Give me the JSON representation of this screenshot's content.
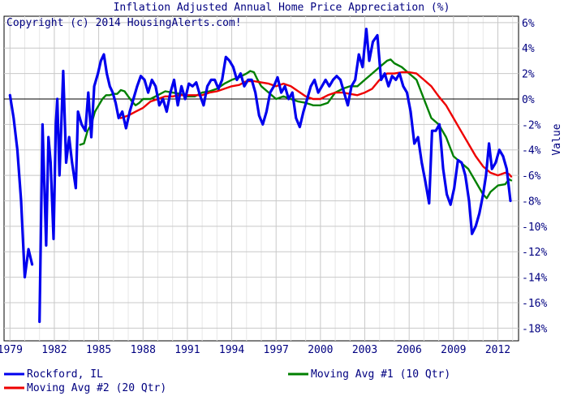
{
  "chart_data": {
    "type": "line",
    "title": "Inflation Adjusted Annual Home Price Appreciation (%)",
    "annotation": "Copyright (c) 2014 HousingAlerts.com!",
    "xlabel": "",
    "ylabel": "Value",
    "xlim": [
      1978.6,
      2013.4
    ],
    "ylim": [
      -19,
      6.5
    ],
    "x_ticks": [
      1979,
      1982,
      1985,
      1988,
      1991,
      1994,
      1997,
      2000,
      2003,
      2006,
      2009,
      2012
    ],
    "x_tick_labels": [
      "1979",
      "1982",
      "1985",
      "1988",
      "1991",
      "1994",
      "1997",
      "2000",
      "2003",
      "2006",
      "2009",
      "2012"
    ],
    "y_ticks": [
      6,
      4,
      2,
      0,
      -2,
      -4,
      -6,
      -8,
      -10,
      -12,
      -14,
      -16,
      -18
    ],
    "y_tick_labels": [
      "6%",
      "4%",
      "2%",
      "0%",
      "-2%",
      "-4%",
      "-6%",
      "-8%",
      "-10%",
      "-12%",
      "-14%",
      "-16%",
      "-18%"
    ],
    "grid": true,
    "legend_position": "bottom",
    "colors": {
      "series_1": "#0000ee",
      "series_2": "#008000",
      "series_3": "#ee0000",
      "zero_line": "#000000",
      "text": "#000080"
    },
    "series": [
      {
        "name": "Rockford, IL",
        "color": "#0000ee",
        "points": [
          [
            1979.0,
            0.3
          ],
          [
            1979.25,
            -1.5
          ],
          [
            1979.5,
            -4.0
          ],
          [
            1979.75,
            -8.0
          ],
          [
            1980.0,
            -14.0
          ],
          [
            1980.25,
            -11.8
          ],
          [
            1980.5,
            -13.0
          ],
          [
            1980.75,
            null
          ],
          [
            1981.0,
            -17.5
          ],
          [
            1981.2,
            -2.0
          ],
          [
            1981.45,
            -11.5
          ],
          [
            1981.6,
            -3.0
          ],
          [
            1981.75,
            -5.0
          ],
          [
            1981.95,
            -11.0
          ],
          [
            1982.1,
            -2.0
          ],
          [
            1982.2,
            0.0
          ],
          [
            1982.35,
            -6.0
          ],
          [
            1982.6,
            2.2
          ],
          [
            1982.8,
            -5.0
          ],
          [
            1983.0,
            -3.0
          ],
          [
            1983.2,
            -5.0
          ],
          [
            1983.45,
            -7.0
          ],
          [
            1983.6,
            -1.0
          ],
          [
            1983.85,
            -2.0
          ],
          [
            1984.1,
            -2.5
          ],
          [
            1984.3,
            0.5
          ],
          [
            1984.5,
            -3.0
          ],
          [
            1984.7,
            1.0
          ],
          [
            1984.95,
            2.0
          ],
          [
            1985.15,
            3.0
          ],
          [
            1985.35,
            3.5
          ],
          [
            1985.55,
            2.0
          ],
          [
            1985.75,
            1.0
          ],
          [
            1985.95,
            0.5
          ],
          [
            1986.15,
            -0.3
          ],
          [
            1986.35,
            -1.5
          ],
          [
            1986.6,
            -1.0
          ],
          [
            1986.85,
            -2.3
          ],
          [
            1987.1,
            -1.0
          ],
          [
            1987.35,
            0.0
          ],
          [
            1987.6,
            1.0
          ],
          [
            1987.85,
            1.8
          ],
          [
            1988.1,
            1.5
          ],
          [
            1988.35,
            0.5
          ],
          [
            1988.6,
            1.5
          ],
          [
            1988.85,
            1.0
          ],
          [
            1989.1,
            -0.5
          ],
          [
            1989.35,
            0.0
          ],
          [
            1989.6,
            -1.0
          ],
          [
            1989.85,
            0.5
          ],
          [
            1990.1,
            1.5
          ],
          [
            1990.35,
            -0.5
          ],
          [
            1990.6,
            1.0
          ],
          [
            1990.85,
            0.0
          ],
          [
            1991.1,
            1.2
          ],
          [
            1991.35,
            1.0
          ],
          [
            1991.6,
            1.3
          ],
          [
            1991.85,
            0.3
          ],
          [
            1992.1,
            -0.5
          ],
          [
            1992.35,
            1.0
          ],
          [
            1992.6,
            1.5
          ],
          [
            1992.85,
            1.5
          ],
          [
            1993.1,
            0.8
          ],
          [
            1993.35,
            1.5
          ],
          [
            1993.6,
            3.3
          ],
          [
            1993.85,
            3.0
          ],
          [
            1994.1,
            2.5
          ],
          [
            1994.35,
            1.5
          ],
          [
            1994.6,
            2.0
          ],
          [
            1994.85,
            1.0
          ],
          [
            1995.1,
            1.5
          ],
          [
            1995.35,
            1.5
          ],
          [
            1995.6,
            0.5
          ],
          [
            1995.85,
            -1.3
          ],
          [
            1996.1,
            -2.0
          ],
          [
            1996.35,
            -1.0
          ],
          [
            1996.6,
            0.5
          ],
          [
            1996.85,
            1.0
          ],
          [
            1997.1,
            1.7
          ],
          [
            1997.35,
            0.5
          ],
          [
            1997.6,
            1.0
          ],
          [
            1997.85,
            0.0
          ],
          [
            1998.1,
            0.5
          ],
          [
            1998.35,
            -1.5
          ],
          [
            1998.6,
            -2.2
          ],
          [
            1998.85,
            -1.0
          ],
          [
            1999.1,
            0.0
          ],
          [
            1999.35,
            1.0
          ],
          [
            1999.6,
            1.5
          ],
          [
            1999.85,
            0.5
          ],
          [
            2000.1,
            1.0
          ],
          [
            2000.35,
            1.5
          ],
          [
            2000.6,
            1.0
          ],
          [
            2000.85,
            1.5
          ],
          [
            2001.1,
            1.8
          ],
          [
            2001.35,
            1.5
          ],
          [
            2001.6,
            0.5
          ],
          [
            2001.85,
            -0.5
          ],
          [
            2002.1,
            1.0
          ],
          [
            2002.35,
            1.5
          ],
          [
            2002.6,
            3.5
          ],
          [
            2002.85,
            2.5
          ],
          [
            2003.1,
            5.5
          ],
          [
            2003.3,
            3.0
          ],
          [
            2003.55,
            4.5
          ],
          [
            2003.85,
            5.0
          ],
          [
            2004.1,
            1.5
          ],
          [
            2004.35,
            2.0
          ],
          [
            2004.6,
            1.0
          ],
          [
            2004.85,
            1.8
          ],
          [
            2005.1,
            1.5
          ],
          [
            2005.35,
            2.0
          ],
          [
            2005.6,
            1.0
          ],
          [
            2005.85,
            0.5
          ],
          [
            2006.1,
            -1.0
          ],
          [
            2006.35,
            -3.5
          ],
          [
            2006.6,
            -3.0
          ],
          [
            2006.85,
            -5.0
          ],
          [
            2007.1,
            -6.5
          ],
          [
            2007.35,
            -8.2
          ],
          [
            2007.55,
            -2.5
          ],
          [
            2007.8,
            -2.5
          ],
          [
            2008.05,
            -2.0
          ],
          [
            2008.3,
            -5.5
          ],
          [
            2008.55,
            -7.5
          ],
          [
            2008.8,
            -8.3
          ],
          [
            2009.05,
            -7.0
          ],
          [
            2009.3,
            -4.8
          ],
          [
            2009.55,
            -5.0
          ],
          [
            2009.8,
            -6.0
          ],
          [
            2010.05,
            -8.0
          ],
          [
            2010.25,
            -10.6
          ],
          [
            2010.5,
            -10.0
          ],
          [
            2010.75,
            -9.0
          ],
          [
            2011.0,
            -7.5
          ],
          [
            2011.2,
            -6.0
          ],
          [
            2011.4,
            -3.5
          ],
          [
            2011.6,
            -5.5
          ],
          [
            2011.85,
            -5.0
          ],
          [
            2012.1,
            -4.0
          ],
          [
            2012.35,
            -4.5
          ],
          [
            2012.6,
            -5.5
          ],
          [
            2012.85,
            -8.0
          ]
        ]
      },
      {
        "name": "Moving Avg #1 (10 Qtr)",
        "color": "#008000",
        "points": [
          [
            1983.75,
            -3.6
          ],
          [
            1984.0,
            -3.5
          ],
          [
            1984.25,
            -2.5
          ],
          [
            1984.5,
            -2.0
          ],
          [
            1984.75,
            -1.0
          ],
          [
            1985.0,
            -0.5
          ],
          [
            1985.25,
            0.0
          ],
          [
            1985.5,
            0.3
          ],
          [
            1985.75,
            0.3
          ],
          [
            1986.0,
            0.4
          ],
          [
            1986.25,
            0.4
          ],
          [
            1986.5,
            0.7
          ],
          [
            1986.75,
            0.6
          ],
          [
            1987.0,
            0.2
          ],
          [
            1987.25,
            -0.2
          ],
          [
            1987.5,
            -0.5
          ],
          [
            1987.75,
            -0.3
          ],
          [
            1988.0,
            0.0
          ],
          [
            1988.5,
            0.0
          ],
          [
            1989.0,
            0.3
          ],
          [
            1989.5,
            0.6
          ],
          [
            1990.0,
            0.5
          ],
          [
            1990.5,
            0.4
          ],
          [
            1991.0,
            0.2
          ],
          [
            1991.5,
            0.2
          ],
          [
            1992.0,
            0.5
          ],
          [
            1992.5,
            0.6
          ],
          [
            1993.0,
            0.8
          ],
          [
            1993.5,
            1.2
          ],
          [
            1994.0,
            1.5
          ],
          [
            1994.5,
            1.7
          ],
          [
            1995.0,
            2.0
          ],
          [
            1995.25,
            2.2
          ],
          [
            1995.5,
            2.1
          ],
          [
            1995.75,
            1.5
          ],
          [
            1996.0,
            1.0
          ],
          [
            1996.5,
            0.5
          ],
          [
            1997.0,
            0.0
          ],
          [
            1997.5,
            0.2
          ],
          [
            1998.0,
            0.0
          ],
          [
            1998.5,
            -0.2
          ],
          [
            1999.0,
            -0.3
          ],
          [
            1999.5,
            -0.5
          ],
          [
            2000.0,
            -0.5
          ],
          [
            2000.5,
            -0.3
          ],
          [
            2001.0,
            0.5
          ],
          [
            2001.5,
            0.8
          ],
          [
            2002.0,
            1.0
          ],
          [
            2002.5,
            1.0
          ],
          [
            2003.0,
            1.5
          ],
          [
            2003.5,
            2.0
          ],
          [
            2004.0,
            2.5
          ],
          [
            2004.5,
            3.0
          ],
          [
            2004.75,
            3.1
          ],
          [
            2005.0,
            2.8
          ],
          [
            2005.5,
            2.5
          ],
          [
            2006.0,
            2.0
          ],
          [
            2006.5,
            1.5
          ],
          [
            2007.0,
            0.0
          ],
          [
            2007.5,
            -1.5
          ],
          [
            2008.0,
            -2.0
          ],
          [
            2008.5,
            -3.0
          ],
          [
            2009.0,
            -4.5
          ],
          [
            2009.5,
            -5.0
          ],
          [
            2010.0,
            -5.5
          ],
          [
            2010.5,
            -6.5
          ],
          [
            2011.0,
            -7.5
          ],
          [
            2011.25,
            -7.8
          ],
          [
            2011.5,
            -7.3
          ],
          [
            2012.0,
            -6.8
          ],
          [
            2012.5,
            -6.7
          ],
          [
            2012.75,
            -6.3
          ],
          [
            2012.9,
            -6.4
          ]
        ]
      },
      {
        "name": "Moving Avg #2 (20 Qtr)",
        "color": "#ee0000",
        "points": [
          [
            1986.5,
            -1.5
          ],
          [
            1987.0,
            -1.3
          ],
          [
            1987.5,
            -1.0
          ],
          [
            1988.0,
            -0.7
          ],
          [
            1988.5,
            -0.2
          ],
          [
            1989.0,
            0.0
          ],
          [
            1989.5,
            0.2
          ],
          [
            1990.0,
            0.2
          ],
          [
            1990.5,
            0.3
          ],
          [
            1991.0,
            0.3
          ],
          [
            1991.5,
            0.3
          ],
          [
            1992.0,
            0.3
          ],
          [
            1992.5,
            0.5
          ],
          [
            1993.0,
            0.6
          ],
          [
            1993.5,
            0.8
          ],
          [
            1994.0,
            1.0
          ],
          [
            1994.5,
            1.1
          ],
          [
            1995.0,
            1.4
          ],
          [
            1995.5,
            1.4
          ],
          [
            1996.0,
            1.3
          ],
          [
            1996.5,
            1.2
          ],
          [
            1997.0,
            1.0
          ],
          [
            1997.5,
            1.2
          ],
          [
            1998.0,
            1.0
          ],
          [
            1998.5,
            0.6
          ],
          [
            1999.0,
            0.2
          ],
          [
            1999.5,
            0.0
          ],
          [
            2000.0,
            0.0
          ],
          [
            2000.5,
            0.3
          ],
          [
            2001.0,
            0.5
          ],
          [
            2001.5,
            0.5
          ],
          [
            2002.0,
            0.4
          ],
          [
            2002.5,
            0.3
          ],
          [
            2003.0,
            0.5
          ],
          [
            2003.5,
            0.8
          ],
          [
            2004.0,
            1.5
          ],
          [
            2004.5,
            2.0
          ],
          [
            2005.0,
            2.0
          ],
          [
            2005.5,
            2.1
          ],
          [
            2006.0,
            2.1
          ],
          [
            2006.5,
            2.0
          ],
          [
            2007.0,
            1.5
          ],
          [
            2007.5,
            1.0
          ],
          [
            2008.0,
            0.2
          ],
          [
            2008.5,
            -0.5
          ],
          [
            2009.0,
            -1.5
          ],
          [
            2009.5,
            -2.5
          ],
          [
            2010.0,
            -3.5
          ],
          [
            2010.5,
            -4.5
          ],
          [
            2011.0,
            -5.3
          ],
          [
            2011.5,
            -5.8
          ],
          [
            2012.0,
            -6.0
          ],
          [
            2012.5,
            -5.8
          ],
          [
            2012.75,
            -5.9
          ],
          [
            2012.9,
            -6.1
          ]
        ]
      }
    ]
  }
}
